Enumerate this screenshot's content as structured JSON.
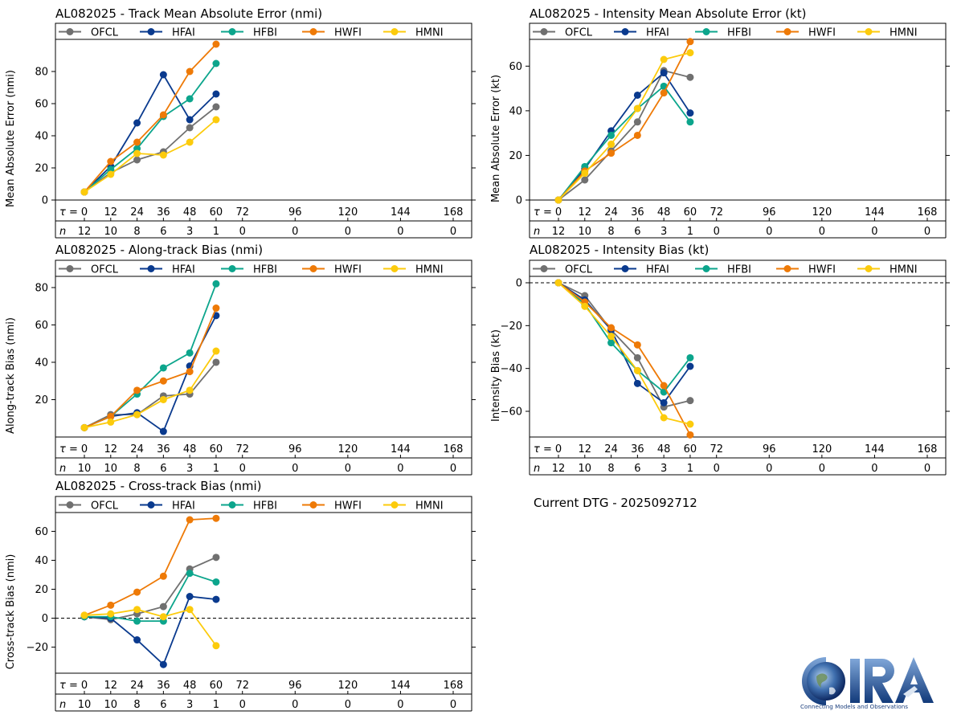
{
  "current_dtg": "Current DTG - 2025092712",
  "logo": {
    "text": "CIRA",
    "tagline": "Connecting Models and Observations"
  },
  "chart_data": [
    {
      "type": "line",
      "title": "AL082025 - Track Mean Absolute Error (nmi)",
      "ylabel": "Mean Absolute Error (nmi)",
      "xlabel": "",
      "ylim": [
        0,
        100
      ],
      "yticks": [
        0,
        20,
        40,
        60,
        80
      ],
      "x_tick_labels": [
        "0",
        "12",
        "24",
        "36",
        "48",
        "60",
        "72",
        "96",
        "120",
        "144",
        "168"
      ],
      "x_tick_values": [
        0,
        12,
        24,
        36,
        48,
        60,
        72,
        96,
        120,
        144,
        168
      ],
      "tau_label": "τ = ",
      "n_label": "n",
      "n_values": [
        "12",
        "10",
        "8",
        "6",
        "3",
        "1",
        "0",
        "0",
        "0",
        "0",
        "0"
      ],
      "zero_line": false,
      "legend": "top",
      "x": [
        0,
        12,
        24,
        36,
        48,
        60
      ],
      "series": [
        {
          "name": "OFCL",
          "color": "#707070",
          "values": [
            5,
            17,
            25,
            30,
            45,
            58
          ]
        },
        {
          "name": "HFAI",
          "color": "#0a3a8e",
          "values": [
            5,
            21,
            48,
            78,
            50,
            66
          ]
        },
        {
          "name": "HFBI",
          "color": "#0ca58c",
          "values": [
            5,
            19,
            32,
            52,
            63,
            85
          ]
        },
        {
          "name": "HWFI",
          "color": "#ee7a07",
          "values": [
            5,
            24,
            36,
            53,
            80,
            97
          ]
        },
        {
          "name": "HMNI",
          "color": "#fccb0c",
          "values": [
            5,
            16,
            29,
            28,
            36,
            50
          ]
        }
      ]
    },
    {
      "type": "line",
      "title": "AL082025 - Intensity Mean Absolute Error (kt)",
      "ylabel": "Mean Absolute Error (kt)",
      "xlabel": "",
      "ylim": [
        0,
        72
      ],
      "yticks": [
        0,
        20,
        40,
        60
      ],
      "x_tick_labels": [
        "0",
        "12",
        "24",
        "36",
        "48",
        "60",
        "72",
        "96",
        "120",
        "144",
        "168"
      ],
      "x_tick_values": [
        0,
        12,
        24,
        36,
        48,
        60,
        72,
        96,
        120,
        144,
        168
      ],
      "tau_label": "τ = ",
      "n_label": "n",
      "n_values": [
        "12",
        "10",
        "8",
        "6",
        "3",
        "1",
        "0",
        "0",
        "0",
        "0",
        "0"
      ],
      "zero_line": false,
      "legend": "top",
      "x": [
        0,
        12,
        24,
        36,
        48,
        60
      ],
      "series": [
        {
          "name": "OFCL",
          "color": "#707070",
          "values": [
            0,
            9,
            22,
            35,
            58,
            55
          ]
        },
        {
          "name": "HFAI",
          "color": "#0a3a8e",
          "values": [
            0,
            14,
            31,
            47,
            57,
            39
          ]
        },
        {
          "name": "HFBI",
          "color": "#0ca58c",
          "values": [
            0,
            15,
            29,
            41,
            51,
            35
          ]
        },
        {
          "name": "HWFI",
          "color": "#ee7a07",
          "values": [
            0,
            13,
            21,
            29,
            48,
            71
          ]
        },
        {
          "name": "HMNI",
          "color": "#fccb0c",
          "values": [
            0,
            12,
            25,
            41,
            63,
            66
          ]
        }
      ]
    },
    {
      "type": "line",
      "title": "AL082025 - Along-track Bias (nmi)",
      "ylabel": "Along-track Bias (nmi)",
      "xlabel": "",
      "ylim": [
        0,
        86
      ],
      "yticks": [
        20,
        40,
        60,
        80
      ],
      "x_tick_labels": [
        "0",
        "12",
        "24",
        "36",
        "48",
        "60",
        "72",
        "96",
        "120",
        "144",
        "168"
      ],
      "x_tick_values": [
        0,
        12,
        24,
        36,
        48,
        60,
        72,
        96,
        120,
        144,
        168
      ],
      "tau_label": "τ = ",
      "n_label": "n",
      "n_values": [
        "10",
        "10",
        "8",
        "6",
        "3",
        "1",
        "0",
        "0",
        "0",
        "0",
        "0"
      ],
      "zero_line": true,
      "legend": "top",
      "x": [
        0,
        12,
        24,
        36,
        48,
        60
      ],
      "series": [
        {
          "name": "OFCL",
          "color": "#707070",
          "values": [
            5,
            12,
            12,
            22,
            23,
            40
          ]
        },
        {
          "name": "HFAI",
          "color": "#0a3a8e",
          "values": [
            5,
            11,
            13,
            3,
            38,
            65
          ]
        },
        {
          "name": "HFBI",
          "color": "#0ca58c",
          "values": [
            5,
            11,
            23,
            37,
            45,
            82
          ]
        },
        {
          "name": "HWFI",
          "color": "#ee7a07",
          "values": [
            5,
            11,
            25,
            30,
            35,
            69
          ]
        },
        {
          "name": "HMNI",
          "color": "#fccb0c",
          "values": [
            5,
            8,
            12,
            20,
            25,
            46
          ]
        }
      ]
    },
    {
      "type": "line",
      "title": "AL082025 - Intensity Bias (kt)",
      "ylabel": "Intensity Bias (kt)",
      "xlabel": "",
      "ylim": [
        -72,
        3
      ],
      "yticks": [
        -60,
        -40,
        -20,
        0
      ],
      "x_tick_labels": [
        "0",
        "12",
        "24",
        "36",
        "48",
        "60",
        "72",
        "96",
        "120",
        "144",
        "168"
      ],
      "x_tick_values": [
        0,
        12,
        24,
        36,
        48,
        60,
        72,
        96,
        120,
        144,
        168
      ],
      "tau_label": "τ = ",
      "n_label": "n",
      "n_values": [
        "12",
        "10",
        "8",
        "6",
        "3",
        "1",
        "0",
        "0",
        "0",
        "0",
        "0"
      ],
      "zero_line": true,
      "legend": "top",
      "x": [
        0,
        12,
        24,
        36,
        48,
        60
      ],
      "series": [
        {
          "name": "OFCL",
          "color": "#707070",
          "values": [
            0,
            -6,
            -22,
            -35,
            -58,
            -55
          ]
        },
        {
          "name": "HFAI",
          "color": "#0a3a8e",
          "values": [
            0,
            -8,
            -22,
            -47,
            -56,
            -39
          ]
        },
        {
          "name": "HFBI",
          "color": "#0ca58c",
          "values": [
            0,
            -10,
            -28,
            -41,
            -51,
            -35
          ]
        },
        {
          "name": "HWFI",
          "color": "#ee7a07",
          "values": [
            0,
            -9,
            -21,
            -29,
            -48,
            -71
          ]
        },
        {
          "name": "HMNI",
          "color": "#fccb0c",
          "values": [
            0,
            -11,
            -25,
            -41,
            -63,
            -66
          ]
        }
      ]
    },
    {
      "type": "line",
      "title": "AL082025 - Cross-track Bias (nmi)",
      "ylabel": "Cross-track Bias (nmi)",
      "xlabel": "",
      "ylim": [
        -38,
        73
      ],
      "yticks": [
        -20,
        0,
        20,
        40,
        60
      ],
      "x_tick_labels": [
        "0",
        "12",
        "24",
        "36",
        "48",
        "60",
        "72",
        "96",
        "120",
        "144",
        "168"
      ],
      "x_tick_values": [
        0,
        12,
        24,
        36,
        48,
        60,
        72,
        96,
        120,
        144,
        168
      ],
      "tau_label": "τ = ",
      "n_label": "n",
      "n_values": [
        "10",
        "10",
        "8",
        "6",
        "3",
        "1",
        "0",
        "0",
        "0",
        "0",
        "0"
      ],
      "zero_line": true,
      "legend": "top",
      "x": [
        0,
        12,
        24,
        36,
        48,
        60
      ],
      "series": [
        {
          "name": "OFCL",
          "color": "#707070",
          "values": [
            1,
            -1,
            3,
            8,
            34,
            42
          ]
        },
        {
          "name": "HFAI",
          "color": "#0a3a8e",
          "values": [
            1,
            0,
            -15,
            -32,
            15,
            13
          ]
        },
        {
          "name": "HFBI",
          "color": "#0ca58c",
          "values": [
            1,
            1,
            -2,
            -2,
            31,
            25
          ]
        },
        {
          "name": "HWFI",
          "color": "#ee7a07",
          "values": [
            2,
            9,
            18,
            29,
            68,
            69
          ]
        },
        {
          "name": "HMNI",
          "color": "#fccb0c",
          "values": [
            2,
            3,
            6,
            1,
            6,
            -19
          ]
        }
      ]
    }
  ]
}
